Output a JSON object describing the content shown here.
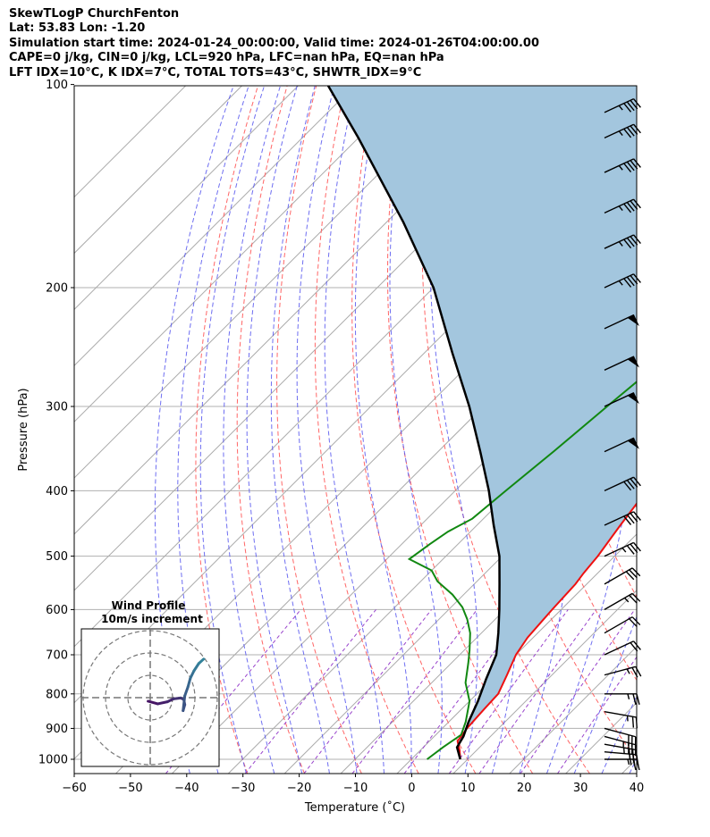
{
  "header": {
    "line1": "SkewTLogP ChurchFenton",
    "line2": "Lat: 53.83   Lon: -1.20",
    "line3": "Simulation start time: 2024-01-24_00:00:00, Valid time: 2024-01-26T04:00:00.00",
    "line4": "CAPE=0 j/kg, CIN=0 j/kg, LCL=920 hPa, LFC=nan hPa, EQ=nan hPa",
    "line5": "LFT IDX=10°C, K IDX=7°C, TOTAL TOTS=43°C, SHWTR_IDX=9°C"
  },
  "inset": {
    "title": "Wind Profile",
    "subtitle": "10m/s increment"
  },
  "chart_data": {
    "type": "line",
    "title": "SkewTLogP ChurchFenton",
    "xlabel": "Temperature (˚C)",
    "ylabel": "Pressure (hPa)",
    "xlim": [
      -60,
      40
    ],
    "ylim": [
      1050,
      100
    ],
    "yscale": "log",
    "x_ticks": [
      -60,
      -50,
      -40,
      -30,
      -20,
      -10,
      0,
      10,
      20,
      30,
      40
    ],
    "x_tick_labels": [
      "−60",
      "−50",
      "−40",
      "−30",
      "−20",
      "−10",
      "0",
      "10",
      "20",
      "30",
      "40"
    ],
    "y_ticks": [
      1000,
      900,
      800,
      700,
      600,
      500,
      400,
      300,
      200,
      100
    ],
    "grid": true,
    "colors": {
      "temperature": "#ee1111",
      "dewpoint": "#118811",
      "parcel": "#000000",
      "cape_fill": "#a3c6de",
      "isotherm": "#aaaaaa",
      "dry_adiabat": "#ff6666",
      "moist_adiabat": "#5555ee",
      "mixing_ratio": "#9944cc"
    },
    "series": [
      {
        "name": "temperature",
        "points": [
          [
            8.7,
            1000
          ],
          [
            7,
            970
          ],
          [
            5,
            940
          ],
          [
            4.4,
            900
          ],
          [
            4.2,
            870
          ],
          [
            4,
            840
          ],
          [
            3.8,
            800
          ],
          [
            2,
            750
          ],
          [
            0,
            700
          ],
          [
            -1,
            660
          ],
          [
            -1.4,
            620
          ],
          [
            -1.6,
            600
          ],
          [
            -2,
            550
          ],
          [
            -2.5,
            530
          ],
          [
            -3,
            500
          ],
          [
            -4.5,
            450
          ],
          [
            -6,
            400
          ],
          [
            -8,
            350
          ],
          [
            -10,
            300
          ],
          [
            -10.5,
            260
          ],
          [
            -10,
            240
          ],
          [
            -9,
            220
          ],
          [
            -7.6,
            200
          ],
          [
            -6,
            185
          ],
          [
            -4,
            170
          ],
          [
            -1,
            155
          ],
          [
            2,
            140
          ],
          [
            4,
            125
          ],
          [
            6,
            115
          ],
          [
            8,
            108
          ],
          [
            10.5,
            100
          ]
        ]
      },
      {
        "name": "dewpoint",
        "points": [
          [
            2.8,
            1000
          ],
          [
            3.5,
            960
          ],
          [
            4.5,
            920
          ],
          [
            3,
            880
          ],
          [
            0,
            820
          ],
          [
            -4,
            770
          ],
          [
            -7,
            720
          ],
          [
            -9,
            690
          ],
          [
            -12,
            650
          ],
          [
            -15,
            620
          ],
          [
            -18,
            595
          ],
          [
            -22,
            570
          ],
          [
            -27,
            545
          ],
          [
            -30,
            525
          ],
          [
            -36,
            505
          ],
          [
            -35,
            480
          ],
          [
            -34,
            460
          ],
          [
            -32,
            440
          ],
          [
            -31,
            400
          ],
          [
            -29.5,
            350
          ],
          [
            -28,
            300
          ],
          [
            -26.5,
            260
          ],
          [
            -25.5,
            235
          ],
          [
            -26,
            215
          ],
          [
            -27,
            200
          ],
          [
            -29,
            185
          ],
          [
            -31,
            175
          ],
          [
            -29,
            160
          ],
          [
            -26,
            140
          ],
          [
            -23,
            120
          ],
          [
            -20,
            100
          ]
        ]
      },
      {
        "name": "parcel",
        "points": [
          [
            8.7,
            1000
          ],
          [
            6,
            960
          ],
          [
            5.2,
            925
          ],
          [
            3.5,
            880
          ],
          [
            1.5,
            820
          ],
          [
            -1,
            760
          ],
          [
            -3.5,
            700
          ],
          [
            -7,
            650
          ],
          [
            -11,
            600
          ],
          [
            -15.5,
            550
          ],
          [
            -20.5,
            500
          ],
          [
            -27,
            450
          ],
          [
            -34,
            400
          ],
          [
            -42.5,
            350
          ],
          [
            -52.5,
            300
          ],
          [
            -65,
            250
          ],
          [
            -80,
            200
          ],
          [
            -97,
            160
          ],
          [
            -120,
            120
          ],
          [
            -135,
            100
          ]
        ]
      }
    ],
    "wind_barbs_kt": [
      {
        "p": 1000,
        "speed": 25,
        "dir": 270
      },
      {
        "p": 975,
        "speed": 30,
        "dir": 275
      },
      {
        "p": 950,
        "speed": 35,
        "dir": 280
      },
      {
        "p": 925,
        "speed": 35,
        "dir": 285
      },
      {
        "p": 900,
        "speed": 30,
        "dir": 285
      },
      {
        "p": 850,
        "speed": 25,
        "dir": 280
      },
      {
        "p": 800,
        "speed": 25,
        "dir": 270
      },
      {
        "p": 750,
        "speed": 25,
        "dir": 255
      },
      {
        "p": 700,
        "speed": 20,
        "dir": 245
      },
      {
        "p": 650,
        "speed": 20,
        "dir": 240
      },
      {
        "p": 600,
        "speed": 25,
        "dir": 240
      },
      {
        "p": 550,
        "speed": 30,
        "dir": 240
      },
      {
        "p": 500,
        "speed": 35,
        "dir": 245
      },
      {
        "p": 450,
        "speed": 40,
        "dir": 245
      },
      {
        "p": 400,
        "speed": 40,
        "dir": 245
      },
      {
        "p": 350,
        "speed": 50,
        "dir": 245
      },
      {
        "p": 300,
        "speed": 50,
        "dir": 245
      },
      {
        "p": 265,
        "speed": 50,
        "dir": 245
      },
      {
        "p": 230,
        "speed": 50,
        "dir": 245
      },
      {
        "p": 200,
        "speed": 45,
        "dir": 245
      },
      {
        "p": 175,
        "speed": 45,
        "dir": 245
      },
      {
        "p": 155,
        "speed": 45,
        "dir": 245
      },
      {
        "p": 135,
        "speed": 45,
        "dir": 245
      },
      {
        "p": 120,
        "speed": 45,
        "dir": 245
      },
      {
        "p": 110,
        "speed": 45,
        "dir": 245
      }
    ],
    "hodograph": {
      "rings_ms": [
        10,
        20,
        30
      ],
      "points_uv_ms": [
        [
          -12,
          -0.3
        ],
        [
          -8,
          -1.2
        ],
        [
          -4,
          -0.5
        ],
        [
          -1.5,
          0.5
        ],
        [
          1.5,
          0.8
        ],
        [
          2.8,
          0.3
        ],
        [
          3.2,
          -1.5
        ],
        [
          2.5,
          -3.5
        ],
        [
          3.2,
          1.5
        ],
        [
          4.5,
          4.5
        ],
        [
          5.5,
          7.5
        ],
        [
          7,
          10
        ],
        [
          9,
          12.5
        ],
        [
          11,
          14
        ]
      ]
    }
  }
}
